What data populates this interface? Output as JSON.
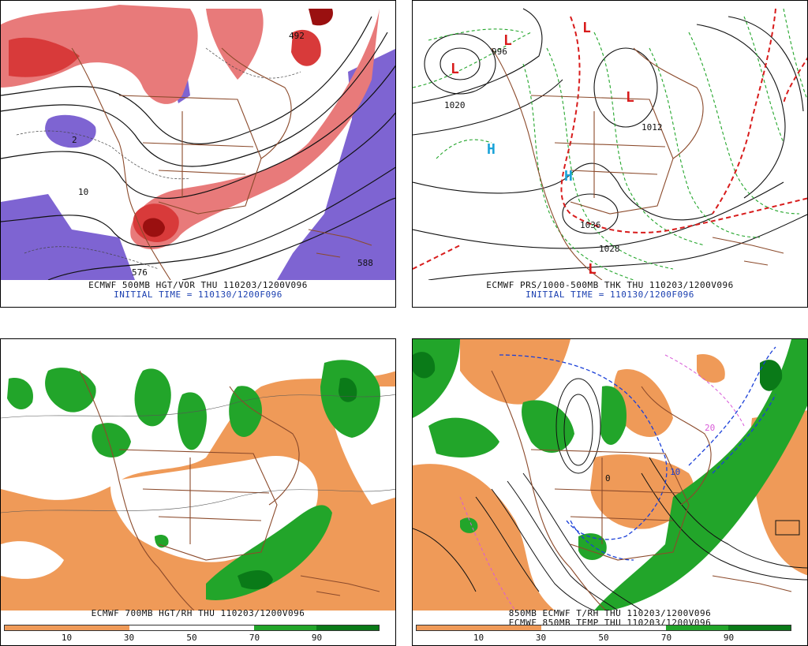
{
  "panels": {
    "tl": {
      "caption1": "ECMWF 500MB HGT/VOR THU 110203/1200V096",
      "caption2": "INITIAL TIME = 110130/1200F096"
    },
    "tr": {
      "caption1": "ECMWF PRS/1000-500MB THK THU 110203/1200V096",
      "caption2": "INITIAL TIME = 110130/1200F096"
    },
    "bl": {
      "caption1": "ECMWF 700MB HGT/RH THU 110203/1200V096",
      "colorbar_ticks": [
        "10",
        "30",
        "50",
        "70",
        "90"
      ]
    },
    "br": {
      "caption1": "850MB ECMWF T/RH THU 110203/1200V096",
      "caption2": "ECMWF 850MB TEMP THU 110203/1200V096",
      "colorbar_ticks": [
        "10",
        "30",
        "50",
        "70",
        "90"
      ]
    }
  },
  "map_labels": {
    "tl_576": "576",
    "tl_588": "588",
    "tl_492": "492",
    "tl_10": "10",
    "tl_2": "2",
    "tr_996": "996",
    "tr_1020": "1020",
    "tr_1012": "1012",
    "tr_1036": "1036",
    "tr_1028": "1028",
    "tr_H1": "H",
    "tr_H2": "H",
    "tr_L": "L",
    "br_0": "0",
    "br_10": "10",
    "br_20": "20"
  },
  "colors": {
    "vorticity_red": "#d83a3a",
    "vorticity_purple": "#7e64d2",
    "rh_dry": "#ef9a58",
    "rh_moist": "#22a52a",
    "rh_very_moist": "#0a7a18",
    "geography": "#8b4a2b",
    "low_marker": "#d81c1c",
    "high_marker": "#1aa3d8",
    "caption_blue": "#1a3fb0"
  }
}
